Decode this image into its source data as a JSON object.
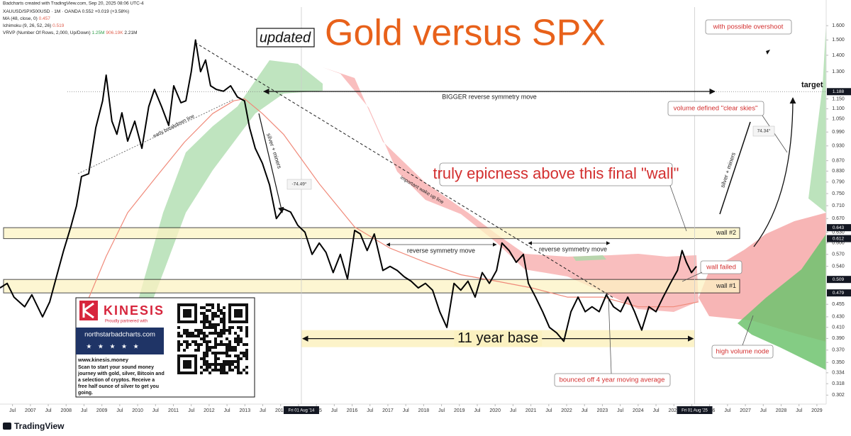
{
  "header": {
    "credit": "Badcharts created with TradingView.com, Sep 20, 2025 08:06 UTC-4",
    "symbol": "XAUUSD/SPX500USD · 1M · OANDA",
    "quote": "0.552 +0.019 (+3.58%)",
    "ma": "MA (48, close, 0)",
    "ma_value": "0.457",
    "ichimoku": "Ichimoku (9, 26, 52, 26)",
    "ichimoku_value": "0.519",
    "vrvp": "VRVP (Number Of Rows, 2,000, Up/Down)",
    "vrvp_up": "1.25M",
    "vrvp_down": "906.19K",
    "vrvp_total": "2.21M"
  },
  "chart_data": {
    "type": "line",
    "title": "Gold versus SPX",
    "log_scale": true,
    "grid": false,
    "xlim": [
      2006.15,
      2029.26
    ],
    "ylim": [
      0.29,
      1.74
    ],
    "xticks": [
      {
        "value": 2006.5,
        "label": "Jul"
      },
      2007,
      {
        "value": 2007.5,
        "label": "Jul"
      },
      2008,
      {
        "value": 2008.5,
        "label": "Jul"
      },
      2009,
      {
        "value": 2009.5,
        "label": "Jul"
      },
      2010,
      {
        "value": 2010.5,
        "label": "Jul"
      },
      2011,
      {
        "value": 2011.5,
        "label": "Jul"
      },
      2012,
      {
        "value": 2012.5,
        "label": "Jul"
      },
      2013,
      {
        "value": 2013.5,
        "label": "Jul"
      },
      2014,
      {
        "value": 2014.5,
        "label": "Jul"
      },
      2015,
      {
        "value": 2015.5,
        "label": "Jul"
      },
      2016,
      {
        "value": 2016.5,
        "label": "Jul"
      },
      2017,
      {
        "value": 2017.5,
        "label": "Jul"
      },
      2018,
      {
        "value": 2018.5,
        "label": "Jul"
      },
      2019,
      {
        "value": 2019.5,
        "label": "Jul"
      },
      2020,
      {
        "value": 2020.5,
        "label": "Jul"
      },
      2021,
      {
        "value": 2021.5,
        "label": "Jul"
      },
      2022,
      {
        "value": 2022.5,
        "label": "Jul"
      },
      2023,
      {
        "value": 2023.5,
        "label": "Jul"
      },
      2024,
      {
        "value": 2024.5,
        "label": "Jul"
      },
      2025,
      {
        "value": 2025.5,
        "label": "Jul"
      },
      2026,
      {
        "value": 2026.5,
        "label": "Jul"
      },
      2027,
      {
        "value": 2027.5,
        "label": "Jul"
      },
      2028,
      {
        "value": 2028.5,
        "label": "Jul"
      },
      2029
    ],
    "yticks": [
      {
        "value": 1.6,
        "label": "1.600"
      },
      {
        "value": 1.5,
        "label": "1.500"
      },
      {
        "value": 1.4,
        "label": "1.400"
      },
      {
        "value": 1.3,
        "label": "1.300"
      },
      {
        "value": 1.15,
        "label": "1.150"
      },
      {
        "value": 1.1,
        "label": "1.100"
      },
      {
        "value": 1.05,
        "label": "1.050"
      },
      {
        "value": 0.99,
        "label": "0.990"
      },
      {
        "value": 0.93,
        "label": "0.930"
      },
      {
        "value": 0.87,
        "label": "0.870"
      },
      {
        "value": 0.83,
        "label": "0.830"
      },
      {
        "value": 0.79,
        "label": "0.790"
      },
      {
        "value": 0.75,
        "label": "0.750"
      },
      {
        "value": 0.71,
        "label": "0.710"
      },
      {
        "value": 0.67,
        "label": "0.670"
      },
      {
        "value": 0.63,
        "label": "0.630"
      },
      {
        "value": 0.6,
        "label": "0.600"
      },
      {
        "value": 0.57,
        "label": "0.570"
      },
      {
        "value": 0.54,
        "label": "0.540"
      },
      0.455,
      {
        "value": 0.43,
        "label": "0.430"
      },
      {
        "value": 0.41,
        "label": "0.410"
      },
      {
        "value": 0.39,
        "label": "0.390"
      },
      {
        "value": 0.37,
        "label": "0.370"
      },
      {
        "value": 0.35,
        "label": "0.350"
      },
      0.334,
      0.318,
      0.302
    ],
    "series": [
      {
        "color": "#f08a7a",
        "width": 1.2,
        "x": [
          2008.53,
          2009.12,
          2009.72,
          2010.51,
          2011.31,
          2012.1,
          2012.69,
          2012.99,
          2013.49,
          2014.08,
          2015.08,
          2016.07,
          2017.06,
          2018.05,
          2019.04,
          2020.04,
          2021.03,
          2022.02,
          2023.01,
          2024.0,
          2024.99,
          2025.69
        ],
        "values": [
          0.45,
          0.565,
          0.688,
          0.807,
          0.946,
          1.076,
          1.14,
          1.15,
          1.076,
          0.98,
          0.784,
          0.645,
          0.586,
          0.55,
          0.52,
          0.505,
          0.49,
          0.47,
          0.47,
          0.45,
          0.45,
          0.46
        ]
      },
      {
        "color": "#000000",
        "width": 2,
        "x": [
          2006.15,
          2006.35,
          2006.54,
          2006.84,
          2007.04,
          2007.34,
          2007.54,
          2007.73,
          2007.93,
          2008.13,
          2008.29,
          2008.43,
          2008.63,
          2008.83,
          2009.02,
          2009.12,
          2009.28,
          2009.42,
          2009.56,
          2009.72,
          2009.92,
          2010.12,
          2010.31,
          2010.47,
          2010.67,
          2010.87,
          2011.01,
          2011.21,
          2011.35,
          2011.5,
          2011.62,
          2011.76,
          2011.9,
          2012.04,
          2012.2,
          2012.4,
          2012.6,
          2012.79,
          2012.99,
          2013.13,
          2013.29,
          2013.49,
          2013.69,
          2013.88,
          2014.08,
          2014.28,
          2014.48,
          2014.68,
          2014.88,
          2015.08,
          2015.27,
          2015.47,
          2015.67,
          2015.87,
          2016.07,
          2016.23,
          2016.42,
          2016.62,
          2016.86,
          2017.06,
          2017.26,
          2017.46,
          2017.65,
          2017.85,
          2018.05,
          2018.25,
          2018.45,
          2018.65,
          2018.85,
          2019.04,
          2019.24,
          2019.44,
          2019.64,
          2019.84,
          2020.04,
          2020.19,
          2020.39,
          2020.59,
          2020.79,
          2020.93,
          2021.13,
          2021.33,
          2021.52,
          2021.72,
          2021.92,
          2022.12,
          2022.32,
          2022.52,
          2022.71,
          2022.91,
          2023.11,
          2023.31,
          2023.51,
          2023.71,
          2023.9,
          2024.1,
          2024.3,
          2024.5,
          2024.7,
          2024.9,
          2025.1,
          2025.23,
          2025.35,
          2025.49,
          2025.63
        ],
        "values": [
          0.49,
          0.5,
          0.47,
          0.45,
          0.475,
          0.43,
          0.46,
          0.515,
          0.58,
          0.645,
          0.71,
          0.81,
          0.82,
          1.01,
          1.14,
          1.28,
          1.04,
          0.98,
          1.08,
          0.95,
          1.04,
          0.92,
          1.11,
          1.2,
          1.11,
          1.02,
          1.22,
          1.13,
          1.14,
          1.3,
          1.5,
          1.3,
          1.37,
          1.22,
          1.2,
          1.19,
          1.22,
          1.16,
          1.14,
          1.01,
          0.92,
          0.86,
          0.78,
          0.67,
          0.7,
          0.69,
          0.65,
          0.63,
          0.57,
          0.6,
          0.575,
          0.525,
          0.57,
          0.51,
          0.635,
          0.625,
          0.58,
          0.625,
          0.53,
          0.54,
          0.53,
          0.515,
          0.505,
          0.49,
          0.5,
          0.485,
          0.44,
          0.41,
          0.5,
          0.485,
          0.505,
          0.47,
          0.525,
          0.5,
          0.53,
          0.6,
          0.58,
          0.55,
          0.57,
          0.5,
          0.47,
          0.44,
          0.41,
          0.4,
          0.385,
          0.44,
          0.47,
          0.44,
          0.45,
          0.44,
          0.475,
          0.45,
          0.44,
          0.47,
          0.44,
          0.405,
          0.45,
          0.44,
          0.47,
          0.5,
          0.53,
          0.58,
          0.55,
          0.525,
          0.54
        ]
      }
    ],
    "walls": [
      {
        "label": "wall #2",
        "high": 0.643,
        "low": 0.612
      },
      {
        "label": "wall #1",
        "high": 0.509,
        "low": 0.479
      }
    ],
    "target": {
      "label": "target",
      "value": 1.188
    },
    "base": {
      "label": "11 year base",
      "start": 2014.58,
      "end": 2025.58,
      "high": 0.405,
      "low": 0.375
    },
    "xmarkers": [
      {
        "value": 2014.58,
        "label": "Fri 01 Aug '14"
      },
      {
        "value": 2025.58,
        "label": "Fri 01 Aug '25"
      }
    ],
    "annotations": {
      "updated": "updated",
      "overshoot": "with possible overshoot",
      "bigger": "BIGGER reverse symmetry move",
      "clear_skies": "volume defined \"clear skies\"",
      "angle_right": "74.34°",
      "angle_left": "-74.49°",
      "epic": "truly epicness above this final \"wall\"",
      "wall_failed": "wall failed",
      "rsm_1": "reverse symmetry move",
      "rsm_2": "reverse symmetry move",
      "hvn": "high volume node",
      "bounced": "bounced off 4 year moving average",
      "early": "early breakdown line",
      "wake": "important wake up line",
      "silver_1": "silver + miners",
      "silver_2": "silver + miners"
    }
  },
  "ad": {
    "brand": "KINESIS",
    "partner": "Proudly partnered with",
    "site": "northstarbadcharts.com",
    "stars": "★ ★ ★ ★ ★",
    "url": "www.kinesis.money",
    "body": [
      "Scan to start your sound money",
      "journey with gold, silver, Bitcoin and",
      "a selection of cryptos. Receive a",
      "free half ounce of silver to get you",
      "going."
    ]
  },
  "footer": {
    "brand": "TradingView"
  }
}
